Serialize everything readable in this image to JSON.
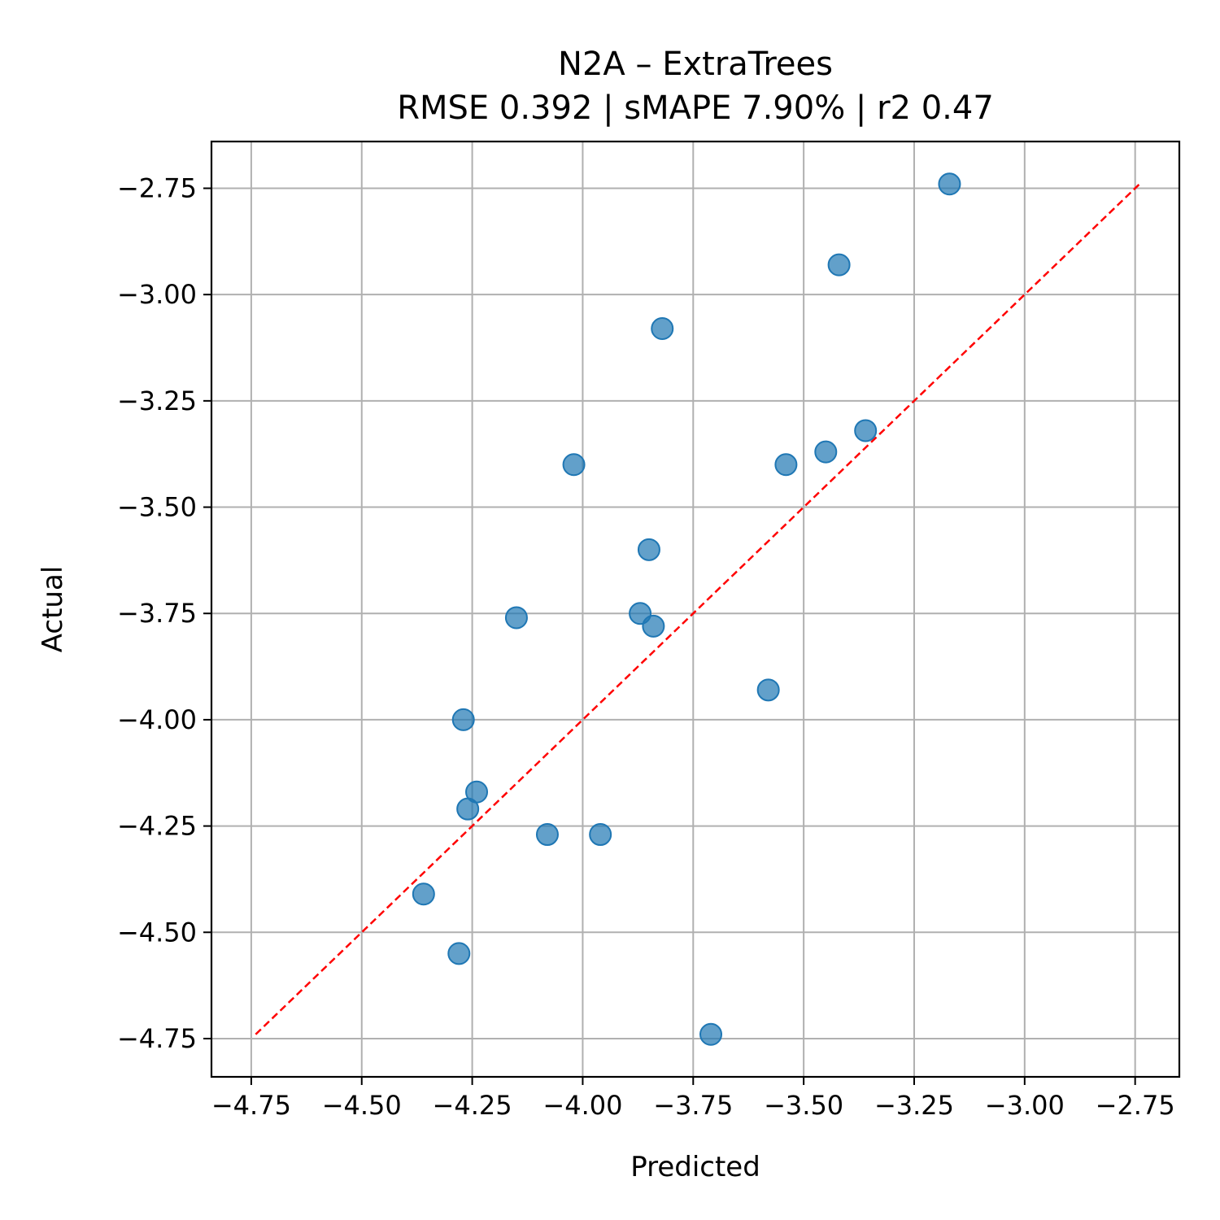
{
  "chart_data": {
    "type": "scatter",
    "title": "N2A – ExtraTrees",
    "subtitle": "RMSE 0.392 | sMAPE 7.90%  | r2 0.47",
    "xlabel": "Predicted",
    "ylabel": "Actual",
    "xlim": [
      -4.84,
      -2.65
    ],
    "ylim": [
      -4.84,
      -2.64
    ],
    "xticks": [
      "−4.75",
      "−4.50",
      "−4.25",
      "−4.00",
      "−3.75",
      "−3.50",
      "−3.25",
      "−3.00",
      "−2.75"
    ],
    "yticks": [
      "−2.75",
      "−3.00",
      "−3.25",
      "−3.50",
      "−3.75",
      "−4.00",
      "−4.25",
      "−4.50",
      "−4.75"
    ],
    "grid": true,
    "point_color": "#1f77b4",
    "diagonal_color": "#ff0000",
    "diagonal": {
      "from": -4.74,
      "to": -2.74
    },
    "points": [
      {
        "x": -3.17,
        "y": -2.74
      },
      {
        "x": -3.42,
        "y": -2.93
      },
      {
        "x": -3.82,
        "y": -3.08
      },
      {
        "x": -3.36,
        "y": -3.32
      },
      {
        "x": -3.45,
        "y": -3.37
      },
      {
        "x": -3.54,
        "y": -3.4
      },
      {
        "x": -4.02,
        "y": -3.4
      },
      {
        "x": -3.85,
        "y": -3.6
      },
      {
        "x": -3.87,
        "y": -3.75
      },
      {
        "x": -3.84,
        "y": -3.78
      },
      {
        "x": -4.15,
        "y": -3.76
      },
      {
        "x": -3.58,
        "y": -3.93
      },
      {
        "x": -4.27,
        "y": -4.0
      },
      {
        "x": -4.24,
        "y": -4.17
      },
      {
        "x": -4.26,
        "y": -4.21
      },
      {
        "x": -4.08,
        "y": -4.27
      },
      {
        "x": -3.96,
        "y": -4.27
      },
      {
        "x": -4.36,
        "y": -4.41
      },
      {
        "x": -4.28,
        "y": -4.55
      },
      {
        "x": -3.71,
        "y": -4.74
      }
    ]
  }
}
